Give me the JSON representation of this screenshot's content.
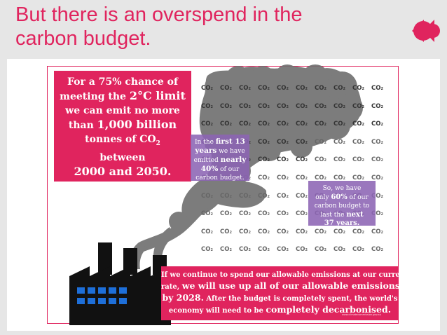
{
  "slide": {
    "title_line1": "But there is an overspend in the",
    "title_line2": "carbon budget.",
    "accent_color": "#e0245e",
    "logo_icon": "double-quote-mark-icon"
  },
  "budget_box": {
    "line1": "For a 75% chance of",
    "line2_pre": "meeting the ",
    "line2_em": "2°C limit",
    "line3": "we can emit no more",
    "line4_pre": "than ",
    "line4_em": "1,000 billion",
    "line5": "tonnes of CO",
    "line5_sub": "2",
    "line6": "between",
    "line7": "2000 and 2050."
  },
  "first13": {
    "l1_pre": "In the ",
    "l1_em": "first 13",
    "l2_pre": "years",
    "l2_post": " we have",
    "l3_pre": "emitted ",
    "l3_em": "nearly",
    "l4_em": "40%",
    "l4_post": " of our",
    "l5": "carbon budget."
  },
  "sixty": {
    "l1": "So, we have",
    "l2_pre": "only ",
    "l2_em": "60%",
    "l2_post": " of our",
    "l3": "carbon budget to",
    "l4_pre": "last the ",
    "l4_em": "next",
    "l5_em": "37 years."
  },
  "co2": {
    "label": "CO",
    "sub": "2"
  },
  "bottom_box": {
    "l1": "If we continue to spend our allowable emissions at our current",
    "l2_pre": "rate, ",
    "l2_em": "we will use up all of our allowable emissions",
    "l3_em": "by 2028.",
    "l3_post": " After the budget is completely spent, the world's",
    "l4_pre": "economy will need to be ",
    "l4_em": "completely decarbonised.",
    "url": "www.climatecommission.gov.au"
  },
  "colors": {
    "pink": "#e0245e",
    "purple": "#8c64b4",
    "smoke": "#6e6e6e",
    "factory": "#111111",
    "windows": "#1e6fd9"
  }
}
